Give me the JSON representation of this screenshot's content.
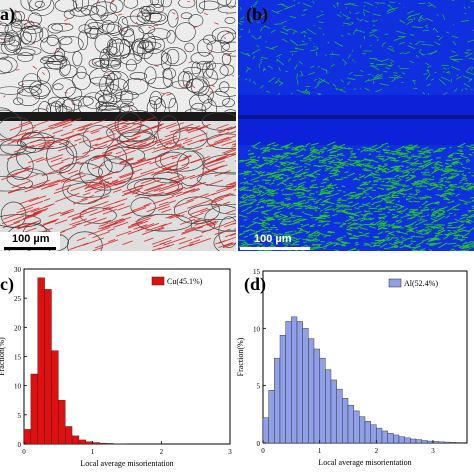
{
  "panels": {
    "a": {
      "label": "a)",
      "scale_text": "100 µm"
    },
    "b": {
      "label": "(b)",
      "scale_text": "100 µm"
    },
    "c": {
      "label": "c)"
    },
    "d": {
      "label": "(d)"
    }
  },
  "colors": {
    "cu_bar": "#e01010",
    "al_bar": "#8f9fe8",
    "ebsd_green": "#22d01a",
    "ebsd_blue": "#1030e0",
    "gb_red": "#d82020"
  },
  "chart_data": [
    {
      "type": "bar",
      "panel": "c",
      "xlabel": "Local average misorientation",
      "ylabel": "Fraction(%)",
      "xlim": [
        0,
        3
      ],
      "ylim": [
        0,
        30
      ],
      "x_ticks": [
        "0",
        "1",
        "2",
        "3"
      ],
      "y_ticks": [
        "0",
        "5",
        "10",
        "15",
        "20",
        "25",
        "30"
      ],
      "bin_width": 0.1,
      "series": [
        {
          "name": "Cu(45.1%)",
          "x": [
            0.05,
            0.15,
            0.25,
            0.35,
            0.45,
            0.55,
            0.65,
            0.75,
            0.85,
            0.95,
            1.05,
            1.15,
            1.25,
            1.35,
            1.45
          ],
          "values": [
            2.5,
            12.0,
            28.5,
            26.5,
            16.0,
            7.5,
            3.0,
            1.4,
            0.7,
            0.4,
            0.25,
            0.15,
            0.1,
            0.05,
            0.03
          ]
        }
      ],
      "legend": "top-right"
    },
    {
      "type": "bar",
      "panel": "d",
      "xlabel": "Local average misorientation",
      "ylabel": "Fraction(%)",
      "xlim": [
        0,
        3.6
      ],
      "ylim": [
        0,
        15
      ],
      "x_ticks": [
        "0",
        "1",
        "2",
        "3"
      ],
      "y_ticks": [
        "0",
        "5",
        "10",
        "15"
      ],
      "bin_width": 0.1,
      "series": [
        {
          "name": "Al(52.4%)",
          "x": [
            0.05,
            0.15,
            0.25,
            0.35,
            0.45,
            0.55,
            0.65,
            0.75,
            0.85,
            0.95,
            1.05,
            1.15,
            1.25,
            1.35,
            1.45,
            1.55,
            1.65,
            1.75,
            1.85,
            1.95,
            2.05,
            2.15,
            2.25,
            2.35,
            2.45,
            2.55,
            2.65,
            2.75,
            2.85,
            2.95,
            3.05,
            3.15,
            3.25,
            3.35,
            3.45
          ],
          "values": [
            2.2,
            4.6,
            7.4,
            9.4,
            10.6,
            11.0,
            10.6,
            10.0,
            9.1,
            8.2,
            7.4,
            6.4,
            5.5,
            4.7,
            3.9,
            3.3,
            2.8,
            2.3,
            1.9,
            1.6,
            1.3,
            1.05,
            0.85,
            0.7,
            0.55,
            0.45,
            0.35,
            0.3,
            0.22,
            0.17,
            0.13,
            0.1,
            0.08,
            0.06,
            0.04
          ]
        }
      ],
      "legend": "top-right"
    }
  ]
}
